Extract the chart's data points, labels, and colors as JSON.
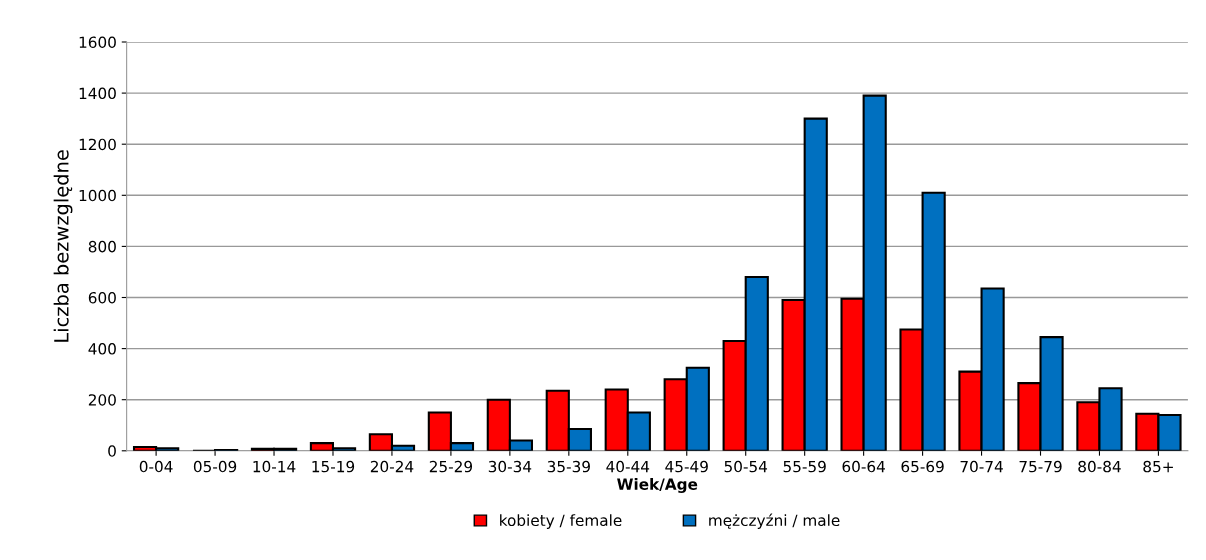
{
  "chart_data": {
    "type": "bar",
    "categories": [
      "0-04",
      "05-09",
      "10-14",
      "15-19",
      "20-24",
      "25-29",
      "30-34",
      "35-39",
      "40-44",
      "45-49",
      "50-54",
      "55-59",
      "60-64",
      "65-69",
      "70-74",
      "75-79",
      "80-84",
      "85+"
    ],
    "series": [
      {
        "name": "kobiety / female",
        "color": "#ff0000",
        "values": [
          15,
          null,
          8,
          30,
          65,
          150,
          200,
          235,
          240,
          280,
          430,
          590,
          595,
          475,
          310,
          265,
          190,
          145
        ]
      },
      {
        "name": "mężczyźni / male",
        "color": "#0070c0",
        "values": [
          10,
          3,
          8,
          10,
          20,
          30,
          40,
          85,
          150,
          325,
          680,
          1300,
          1390,
          1010,
          635,
          445,
          245,
          140
        ]
      }
    ],
    "xlabel": "Wiek/Age",
    "ylabel": "Liczba bezwzględne",
    "ylim": [
      0,
      1600
    ],
    "yticks": [
      0,
      200,
      400,
      600,
      800,
      1000,
      1200,
      1400,
      1600
    ],
    "grid": "y",
    "legend": "bottom"
  }
}
